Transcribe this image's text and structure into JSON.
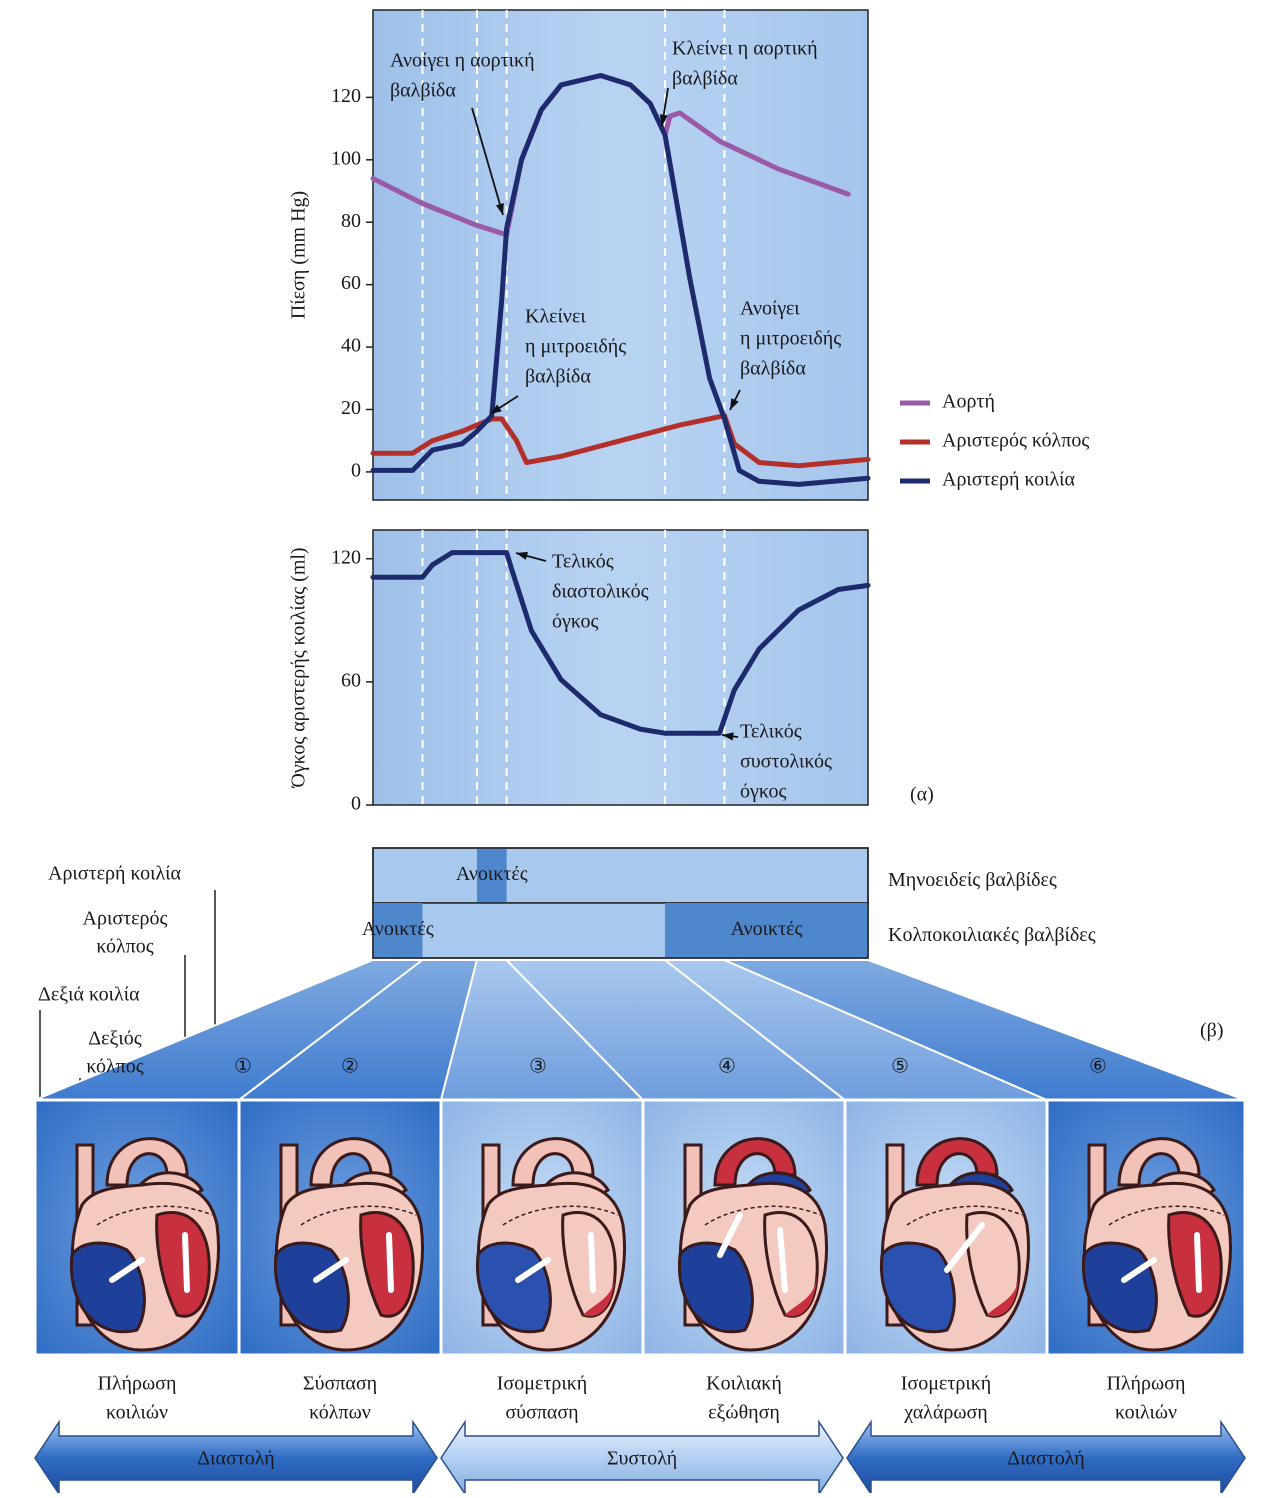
{
  "chart_data": [
    {
      "type": "line",
      "ylabel": "Πίεση (mm Hg)",
      "ylim": [
        -9,
        148
      ],
      "yticks": [
        0,
        20,
        40,
        60,
        80,
        100,
        120
      ],
      "xlim": [
        0,
        100
      ],
      "phase_boundaries": [
        10,
        21,
        27,
        59,
        71
      ],
      "legend": "right",
      "series": [
        {
          "name": "Αορτή",
          "color": "#9a5aa8",
          "x": [
            0,
            10,
            21,
            27,
            30,
            34,
            38,
            46,
            52,
            56,
            59,
            60,
            62,
            70,
            82,
            96
          ],
          "values": [
            94,
            86,
            79,
            76,
            100,
            116,
            124,
            127,
            124,
            118,
            108,
            114,
            115,
            106,
            97,
            89
          ]
        },
        {
          "name": "Αριστερός κόλπος",
          "color": "#b3302a",
          "x": [
            0,
            8,
            12,
            18,
            21,
            24,
            26,
            29,
            31,
            38,
            50,
            62,
            71,
            73,
            78,
            86,
            100
          ],
          "values": [
            6,
            6,
            10,
            13,
            15,
            17,
            17,
            10,
            3,
            5,
            10,
            15,
            18,
            9,
            3,
            2,
            4
          ]
        },
        {
          "name": "Αριστερή κοιλία",
          "color": "#1d2a6e",
          "x": [
            0,
            8,
            12,
            18,
            21,
            24,
            26,
            27,
            30,
            34,
            38,
            46,
            52,
            56,
            59,
            64,
            68,
            71,
            74,
            78,
            86,
            100
          ],
          "values": [
            0.5,
            0.5,
            7,
            9,
            13,
            18,
            55,
            78,
            100,
            116,
            124,
            127,
            124,
            118,
            108,
            62,
            30,
            17,
            0.5,
            -3,
            -4,
            -2
          ]
        }
      ],
      "annotations": [
        {
          "text": [
            "Ανοίγει η αορτική",
            "βαλβίδα"
          ]
        },
        {
          "text": [
            "Κλείνει η αορτική",
            "βαλβίδα"
          ]
        },
        {
          "text": [
            "Κλείνει",
            "η μιτροειδής",
            "βαλβίδα"
          ]
        },
        {
          "text": [
            "Ανοίγει",
            "η μιτροειδής",
            "βαλβίδα"
          ]
        }
      ]
    },
    {
      "type": "line",
      "ylabel": "Όγκος αριστερής κοιλίας (ml)",
      "ylim": [
        0,
        134
      ],
      "yticks": [
        0,
        60,
        120
      ],
      "xlim": [
        0,
        100
      ],
      "phase_boundaries": [
        10,
        21,
        27,
        59,
        71
      ],
      "series": [
        {
          "color": "#1d2a6e",
          "x": [
            0,
            10,
            12,
            16,
            27,
            28,
            32,
            38,
            46,
            54,
            59,
            70,
            73,
            78,
            86,
            94,
            100
          ],
          "values": [
            111,
            111,
            117,
            123,
            123,
            115,
            85,
            61,
            44,
            37,
            35,
            35,
            56,
            76,
            95,
            105,
            107
          ]
        }
      ],
      "annotations": [
        {
          "text": [
            "Τελικός",
            "διαστολικός",
            "όγκος"
          ]
        },
        {
          "text": [
            "Τελικός",
            "συστολικός",
            "όγκος"
          ]
        }
      ],
      "panel_label": "(α)"
    }
  ],
  "valves": {
    "rows": [
      {
        "label": "Μηνοειδείς βαλβίδες",
        "open": [
          "Ανοικτές"
        ]
      },
      {
        "label": "Κολποκοιλιακές βαλβίδες",
        "open": [
          "Ανοικτές",
          "Ανοικτές"
        ]
      }
    ]
  },
  "heart_labels": [
    [
      "Αριστερή κοιλία"
    ],
    [
      "Αριστερός",
      "κόλπος"
    ],
    [
      "Δεξιά κοιλία"
    ],
    [
      "Δεξιός",
      "κόλπος"
    ]
  ],
  "panel_label": "(β)",
  "stages": [
    {
      "number": "①",
      "caption": [
        "Πλήρωση",
        "κοιλιών"
      ]
    },
    {
      "number": "②",
      "caption": [
        "Σύσπαση",
        "κόλπων"
      ]
    },
    {
      "number": "③",
      "caption": [
        "Ισομετρική",
        "σύσπαση"
      ]
    },
    {
      "number": "④",
      "caption": [
        "Κοιλιακή",
        "εξώθηση"
      ]
    },
    {
      "number": "⑤",
      "caption": [
        "Ισομετρική",
        "χαλάρωση"
      ]
    },
    {
      "number": "⑥",
      "caption": [
        "Πλήρωση",
        "κοιλιών"
      ]
    }
  ],
  "phases": [
    "Διαστολή",
    "Συστολή",
    "Διαστολή"
  ]
}
